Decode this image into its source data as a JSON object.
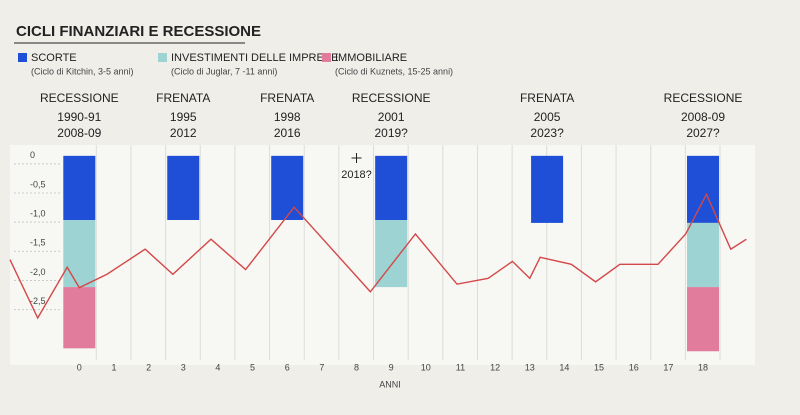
{
  "chart_data": {
    "type": "bar",
    "title": "CICLI FINANZIARI E RECESSIONE",
    "x": [
      0,
      3,
      6,
      9,
      13.5,
      18
    ],
    "series": [
      {
        "name": "SCORTE",
        "note": "(Ciclo di Kitchin, 3-5 anni)",
        "color": "#1f4fd6",
        "values": [
          -1.1,
          -1.1,
          -1.1,
          -1.1,
          -1.15,
          -1.15
        ]
      },
      {
        "name": "INVESTIMENTI DELLE IMPRESE",
        "note": "(Ciclo di Juglar, 7 -11 anni)",
        "color": "#9dd3d3",
        "values": [
          -1.15,
          null,
          null,
          -1.15,
          null,
          -1.1
        ]
      },
      {
        "name": "IMMOBILIARE",
        "note": "(Ciclo di Kuznets, 15-25 anni)",
        "color": "#e27c9c",
        "values": [
          -1.05,
          null,
          null,
          null,
          null,
          -1.1
        ]
      }
    ],
    "events": [
      {
        "label": "RECESSIONE",
        "years": [
          "1990-91",
          "2008-09"
        ]
      },
      {
        "label": "FRENATA",
        "years": [
          "1995",
          "2012"
        ]
      },
      {
        "label": "FRENATA",
        "years": [
          "1998",
          "2016"
        ]
      },
      {
        "label": "RECESSIONE",
        "years": [
          "2001",
          "2019?"
        ]
      },
      {
        "label": "FRENATA",
        "years": [
          "2005",
          "2023?"
        ]
      },
      {
        "label": "RECESSIONE",
        "years": [
          "2008-09",
          "2027?"
        ]
      }
    ],
    "marker": {
      "x": 8,
      "label": "2018?"
    },
    "sketch": {
      "color": "#d44848",
      "x": [
        -2,
        -1.2,
        -0.35,
        0,
        0.8,
        1.9,
        2.7,
        3.8,
        4.8,
        6.2,
        8.4,
        9.7,
        10.9,
        11.8,
        12.5,
        13,
        13.3,
        14.2,
        14.9,
        15.6,
        16.7,
        17.5,
        18.1,
        18.8,
        19.25
      ],
      "y": [
        -1.78,
        -2.78,
        -1.91,
        -2.26,
        -2.03,
        -1.6,
        -2.03,
        -1.43,
        -1.95,
        -0.88,
        -2.33,
        -1.34,
        -2.2,
        -2.1,
        -1.81,
        -2.1,
        -1.74,
        -1.86,
        -2.16,
        -1.86,
        -1.86,
        -1.34,
        -0.66,
        -1.6,
        -1.43
      ]
    },
    "x_label": "ANNI",
    "xlim": [
      -2,
      19.5
    ],
    "xticks": [
      0,
      1,
      2,
      3,
      4,
      5,
      6,
      7,
      8,
      9,
      10,
      11,
      12,
      13,
      14,
      15,
      16,
      17,
      18
    ],
    "ylim": [
      -3.5,
      0.1
    ],
    "yticks": [
      0,
      {
        "value": -0.5,
        "label": "-0,5"
      },
      {
        "value": -1,
        "label": "-1,0"
      },
      {
        "value": -1.5,
        "label": "-1,5"
      },
      {
        "value": -2,
        "label": "-2,0"
      },
      {
        "value": -2.5,
        "label": "-2,5"
      }
    ],
    "grid": true
  }
}
